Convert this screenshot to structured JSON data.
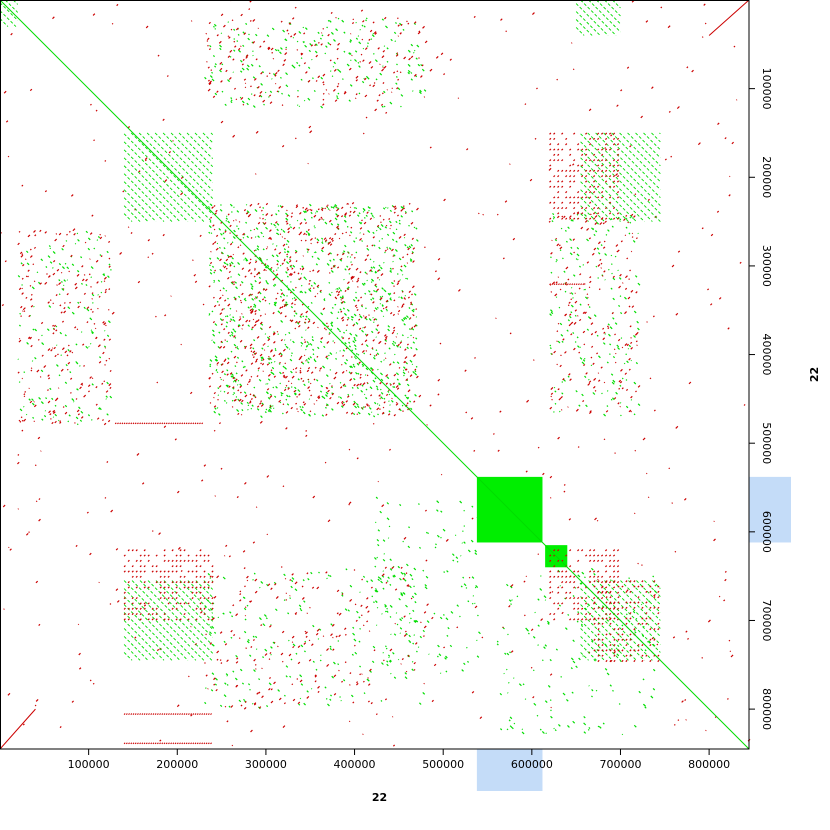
{
  "chart_data": {
    "type": "scatter",
    "title": "",
    "xlabel": "22",
    "ylabel": "22",
    "xlim": [
      0,
      845000
    ],
    "ylim": [
      0,
      845000
    ],
    "y_inverted": true,
    "x_ticks": [
      100000,
      200000,
      300000,
      400000,
      500000,
      600000,
      700000,
      800000
    ],
    "y_ticks": [
      100000,
      200000,
      300000,
      400000,
      500000,
      600000,
      700000,
      800000
    ],
    "x_tick_labels": [
      "100000",
      "200000",
      "300000",
      "400000",
      "500000",
      "600000",
      "700000",
      "800000"
    ],
    "y_tick_labels": [
      "100000",
      "200000",
      "300000",
      "400000",
      "500000",
      "600000",
      "700000",
      "800000"
    ],
    "grid": false,
    "legend": "none",
    "colors": {
      "forward": "#00dd00",
      "reverse": "#cc0000",
      "highlight": "#c4dcf8",
      "block": "#00ee00"
    },
    "highlight_range": [
      538000,
      612000
    ],
    "series": [
      {
        "direction": "forward",
        "main_diagonal": [
          [
            0,
            0
          ],
          [
            845000,
            845000
          ]
        ],
        "filled_blocks": [
          [
            538000,
            612000,
            538000,
            612000
          ],
          [
            615000,
            640000,
            615000,
            640000
          ]
        ],
        "diagonal_blocks": [
          [
            140000,
            240000,
            150000,
            250000
          ],
          [
            655000,
            745000,
            655000,
            745000
          ],
          [
            140000,
            240000,
            655000,
            745000
          ],
          [
            655000,
            745000,
            150000,
            250000
          ],
          [
            0,
            20000,
            0,
            30000
          ],
          [
            650000,
            700000,
            0,
            40000
          ]
        ],
        "dot_clusters": [
          [
            235000,
            470000,
            230000,
            470000,
            900
          ],
          [
            20000,
            125000,
            260000,
            480000,
            150
          ],
          [
            230000,
            480000,
            20000,
            120000,
            220
          ],
          [
            620000,
            720000,
            240000,
            470000,
            180
          ],
          [
            230000,
            480000,
            640000,
            800000,
            220
          ],
          [
            420000,
            540000,
            560000,
            760000,
            140
          ],
          [
            560000,
            740000,
            640000,
            830000,
            160
          ]
        ]
      },
      {
        "direction": "reverse",
        "dot_clusters": [
          [
            235000,
            470000,
            230000,
            470000,
            700
          ],
          [
            20000,
            125000,
            260000,
            480000,
            200
          ],
          [
            230000,
            480000,
            20000,
            120000,
            180
          ],
          [
            620000,
            720000,
            240000,
            470000,
            180
          ],
          [
            230000,
            480000,
            640000,
            800000,
            180
          ],
          [
            0,
            845000,
            0,
            845000,
            500
          ]
        ],
        "reverse_blocks": [
          [
            620000,
            700000,
            150000,
            250000
          ],
          [
            140000,
            240000,
            620000,
            700000
          ],
          [
            620000,
            700000,
            620000,
            700000
          ],
          [
            670000,
            745000,
            655000,
            745000
          ]
        ],
        "anti_diagonals": [
          [
            800000,
            845000,
            0,
            40000
          ],
          [
            0,
            40000,
            800000,
            845000
          ]
        ],
        "stripes": [
          [
            140000,
            240000,
            805000
          ],
          [
            140000,
            240000,
            838000
          ],
          [
            130000,
            230000,
            477000
          ],
          [
            620000,
            660000,
            320000
          ]
        ]
      }
    ]
  }
}
